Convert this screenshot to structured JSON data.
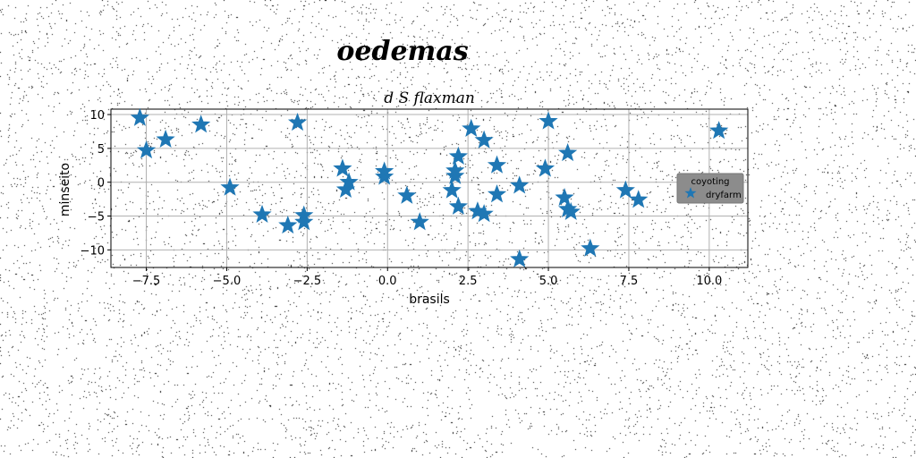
{
  "chart_data": {
    "type": "scatter",
    "title": "oedemas",
    "subtitle": "d S flaxman",
    "xlabel": "brasils",
    "ylabel": "minseito",
    "xlim": [
      -8.6,
      11.2
    ],
    "ylim": [
      -12.6,
      10.8
    ],
    "xticks": [
      -7.5,
      -5.0,
      -2.5,
      0.0,
      2.5,
      5.0,
      7.5,
      10.0
    ],
    "xtick_labels": [
      "−7.5",
      "−5.0",
      "−2.5",
      "0.0",
      "2.5",
      "5.0",
      "7.5",
      "10.0"
    ],
    "yticks": [
      10,
      5,
      0,
      -5,
      -10
    ],
    "ytick_labels": [
      "10",
      "5",
      "0",
      "−5",
      "−10"
    ],
    "grid": true,
    "marker": "star",
    "legend": {
      "title": "coyoting",
      "placement": "center-right",
      "background": "#8c8c8c",
      "entries": [
        "dryfarm"
      ]
    },
    "series": [
      {
        "name": "dryfarm",
        "color": "#1f77b4",
        "points": [
          [
            -7.7,
            9.5
          ],
          [
            -7.5,
            4.7
          ],
          [
            -6.9,
            6.3
          ],
          [
            -5.8,
            8.5
          ],
          [
            -4.9,
            -0.8
          ],
          [
            -3.9,
            -4.8
          ],
          [
            -3.1,
            -6.4
          ],
          [
            -2.8,
            8.8
          ],
          [
            -2.6,
            -4.9
          ],
          [
            -2.6,
            -5.9
          ],
          [
            -1.4,
            2.0
          ],
          [
            -1.3,
            -1.1
          ],
          [
            -1.2,
            0.0
          ],
          [
            -0.1,
            0.8
          ],
          [
            -0.1,
            1.6
          ],
          [
            0.6,
            -2.0
          ],
          [
            1.0,
            -5.9
          ],
          [
            2.0,
            -1.2
          ],
          [
            2.1,
            0.9
          ],
          [
            2.1,
            1.7
          ],
          [
            2.2,
            3.8
          ],
          [
            2.2,
            -3.6
          ],
          [
            2.6,
            7.9
          ],
          [
            2.8,
            -4.3
          ],
          [
            3.0,
            -4.7
          ],
          [
            3.0,
            6.2
          ],
          [
            3.4,
            -1.8
          ],
          [
            3.4,
            2.5
          ],
          [
            4.1,
            -0.5
          ],
          [
            4.1,
            -11.4
          ],
          [
            4.9,
            2.0
          ],
          [
            5.0,
            9.0
          ],
          [
            5.5,
            -2.3
          ],
          [
            5.6,
            4.3
          ],
          [
            5.6,
            -4.0
          ],
          [
            5.7,
            -4.4
          ],
          [
            6.3,
            -9.8
          ],
          [
            7.4,
            -1.2
          ],
          [
            7.8,
            -2.6
          ],
          [
            10.3,
            7.6
          ]
        ]
      }
    ]
  }
}
